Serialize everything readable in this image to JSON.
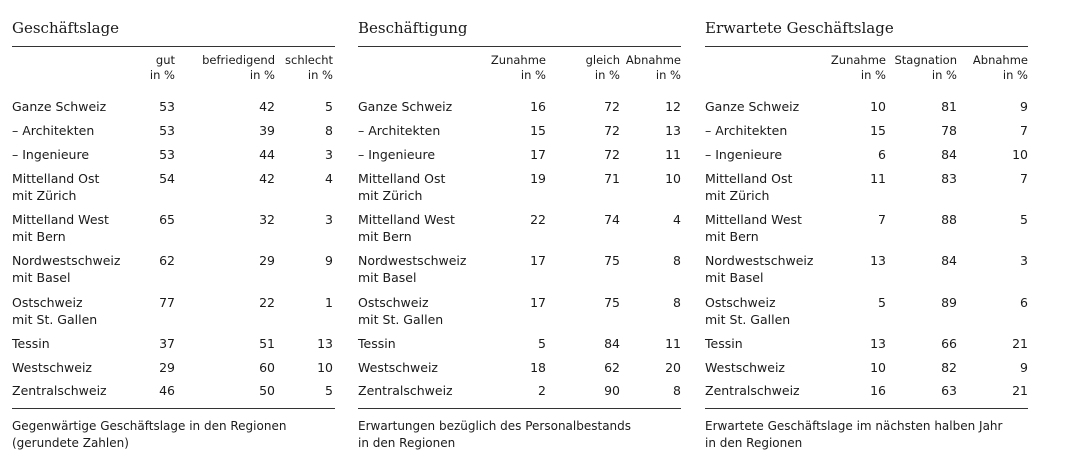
{
  "panels": [
    {
      "title": "Geschäftslage",
      "headers": [
        "gut\nin %",
        "befriedigend\nin %",
        "schlecht\nin %"
      ],
      "rows": [
        {
          "name": "Ganze Schweiz",
          "values": [
            "53",
            "42",
            "5"
          ]
        },
        {
          "name": "– Architekten",
          "values": [
            "53",
            "39",
            "8"
          ]
        },
        {
          "name": "– Ingenieure",
          "values": [
            "53",
            "44",
            "3"
          ]
        },
        {
          "name": "Mittelland Ost\nmit Zürich",
          "values": [
            "54",
            "42",
            "4"
          ]
        },
        {
          "name": "Mittelland West\nmit Bern",
          "values": [
            "65",
            "32",
            "3"
          ]
        },
        {
          "name": "Nordwestschweiz\nmit Basel",
          "values": [
            "62",
            "29",
            "9"
          ]
        },
        {
          "name": "Ostschweiz\nmit St. Gallen",
          "values": [
            "77",
            "22",
            "1"
          ]
        },
        {
          "name": "Tessin",
          "values": [
            "37",
            "51",
            "13"
          ]
        },
        {
          "name": "Westschweiz",
          "values": [
            "29",
            "60",
            "10"
          ]
        },
        {
          "name": "Zentralschweiz",
          "values": [
            "46",
            "50",
            "5"
          ]
        }
      ],
      "caption": "Gegenwärtige Geschäftslage in den Regionen\n(gerundete Zahlen)"
    },
    {
      "title": "Beschäftigung",
      "headers": [
        "Zunahme\nin %",
        "gleich\nin %",
        "Abnahme\nin %"
      ],
      "rows": [
        {
          "name": "Ganze Schweiz",
          "values": [
            "16",
            "72",
            "12"
          ]
        },
        {
          "name": "– Architekten",
          "values": [
            "15",
            "72",
            "13"
          ]
        },
        {
          "name": "– Ingenieure",
          "values": [
            "17",
            "72",
            "11"
          ]
        },
        {
          "name": "Mittelland Ost\nmit Zürich",
          "values": [
            "19",
            "71",
            "10"
          ]
        },
        {
          "name": "Mittelland West\nmit Bern",
          "values": [
            "22",
            "74",
            "4"
          ]
        },
        {
          "name": "Nordwestschweiz\nmit Basel",
          "values": [
            "17",
            "75",
            "8"
          ]
        },
        {
          "name": "Ostschweiz\nmit St. Gallen",
          "values": [
            "17",
            "75",
            "8"
          ]
        },
        {
          "name": "Tessin",
          "values": [
            "5",
            "84",
            "11"
          ]
        },
        {
          "name": "Westschweiz",
          "values": [
            "18",
            "62",
            "20"
          ]
        },
        {
          "name": "Zentralschweiz",
          "values": [
            "2",
            "90",
            "8"
          ]
        }
      ],
      "caption": "Erwartungen bezüglich des Personalbestands\nin den Regionen"
    },
    {
      "title": "Erwartete Geschäftslage",
      "headers": [
        "Zunahme\nin %",
        "Stagnation\nin %",
        "Abnahme\nin %"
      ],
      "rows": [
        {
          "name": "Ganze Schweiz",
          "values": [
            "10",
            "81",
            "9"
          ]
        },
        {
          "name": "– Architekten",
          "values": [
            "15",
            "78",
            "7"
          ]
        },
        {
          "name": "– Ingenieure",
          "values": [
            "6",
            "84",
            "10"
          ]
        },
        {
          "name": "Mittelland Ost\nmit Zürich",
          "values": [
            "11",
            "83",
            "7"
          ]
        },
        {
          "name": "Mittelland West\nmit Bern",
          "values": [
            "7",
            "88",
            "5"
          ]
        },
        {
          "name": "Nordwestschweiz\nmit Basel",
          "values": [
            "13",
            "84",
            "3"
          ]
        },
        {
          "name": "Ostschweiz\nmit St. Gallen",
          "values": [
            "5",
            "89",
            "6"
          ]
        },
        {
          "name": "Tessin",
          "values": [
            "13",
            "66",
            "21"
          ]
        },
        {
          "name": "Westschweiz",
          "values": [
            "10",
            "82",
            "9"
          ]
        },
        {
          "name": "Zentralschweiz",
          "values": [
            "16",
            "63",
            "21"
          ]
        }
      ],
      "caption": "Erwartete Geschäftslage im nächsten halben Jahr\nin den Regionen"
    }
  ]
}
